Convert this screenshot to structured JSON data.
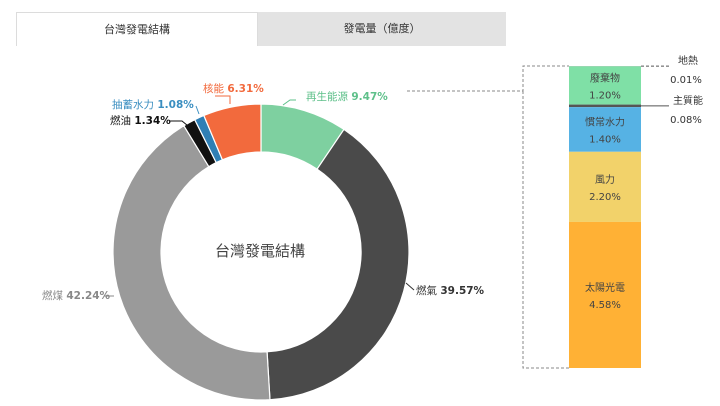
{
  "tabs": [
    {
      "label": "台灣發電結構",
      "active": true
    },
    {
      "label": "發電量（億度）",
      "active": false
    }
  ],
  "chart_data": [
    {
      "type": "pie",
      "title": "台灣發電結構",
      "hole": true,
      "slices": [
        {
          "label": "再生能源",
          "value": 9.47,
          "value_text": "9.47%",
          "color": "#7ed0a0",
          "label_color": "#5ec08a"
        },
        {
          "label": "燃氣",
          "value": 39.57,
          "value_text": "39.57%",
          "color": "#4a4a4a",
          "label_color": "#333333"
        },
        {
          "label": "燃煤",
          "value": 42.24,
          "value_text": "42.24%",
          "color": "#9a9a9a",
          "label_color": "#888888"
        },
        {
          "label": "燃油",
          "value": 1.34,
          "value_text": "1.34%",
          "color": "#111111",
          "label_color": "#111111"
        },
        {
          "label": "抽蓄水力",
          "value": 1.08,
          "value_text": "1.08%",
          "color": "#2f7fb5",
          "label_color": "#3a8ec0"
        },
        {
          "label": "核能",
          "value": 6.31,
          "value_text": "6.31%",
          "color": "#f26a3d",
          "label_color": "#f26a3d"
        }
      ]
    },
    {
      "type": "bar",
      "stacked": true,
      "series": [
        {
          "name": "地熱",
          "value": 0.01,
          "value_text": "0.01%",
          "color": "#c9c9c9"
        },
        {
          "name": "廢棄物",
          "value": 1.2,
          "value_text": "1.20%",
          "color": "#7fe0a6"
        },
        {
          "name": "主質能",
          "value": 0.08,
          "value_text": "0.08%",
          "color": "#555555"
        },
        {
          "name": "慣常水力",
          "value": 1.4,
          "value_text": "1.40%",
          "color": "#56b2e4"
        },
        {
          "name": "風力",
          "value": 2.2,
          "value_text": "2.20%",
          "color": "#f2d26a"
        },
        {
          "name": "太陽光電",
          "value": 4.58,
          "value_text": "4.58%",
          "color": "#ffb135"
        }
      ]
    }
  ]
}
